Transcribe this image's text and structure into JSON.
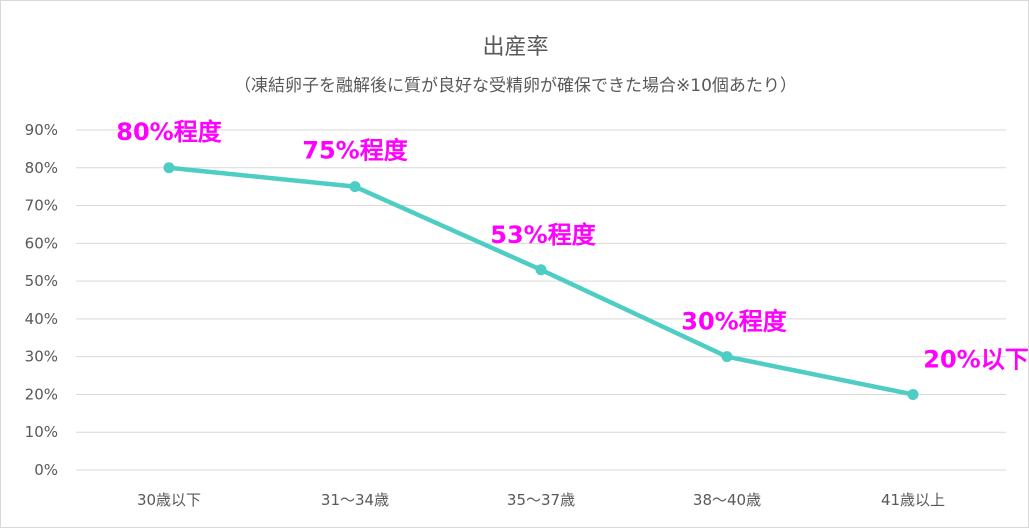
{
  "chart_data": {
    "type": "line",
    "title": "出産率",
    "subtitle": "（凍結卵子を融解後に質が良好な受精卵が確保できた場合※10個あたり）",
    "categories": [
      "30歳以下",
      "31～34歳",
      "35～37歳",
      "38～40歳",
      "41歳以上"
    ],
    "series": [
      {
        "values": [
          80,
          75,
          53,
          30,
          20
        ]
      }
    ],
    "data_labels": [
      "80%程度",
      "75%程度",
      "53%程度",
      "30%程度",
      "20%以下"
    ],
    "y_ticks": [
      "0%",
      "10%",
      "20%",
      "30%",
      "40%",
      "50%",
      "60%",
      "70%",
      "80%",
      "90%"
    ],
    "ylim": [
      0,
      90
    ],
    "grid": true,
    "legend": "none",
    "colors": {
      "line": "#4ecdc4",
      "label": "#ff00ff",
      "grid": "#d9d9d9",
      "text": "#595959"
    }
  }
}
